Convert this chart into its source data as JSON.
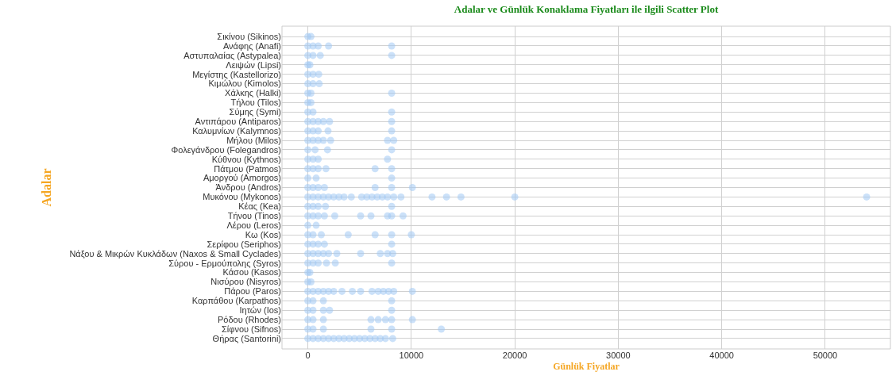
{
  "chart_data": {
    "type": "scatter",
    "orientation": "horizontal",
    "title": "Adalar ve Günlük Konaklama Fiyatları ile ilgili Scatter Plot",
    "xlabel": "Günlük Fiyatlar",
    "ylabel": "Adalar",
    "categories": [
      "Σικίνου (Sikinos)",
      "Ανάφης (Anafi)",
      "Αστυπαλαίας (Astypalea)",
      "Λειψών (Lipsi)",
      "Μεγίστης (Kastellorizo)",
      "Κιμώλου (Kimolos)",
      "Χάλκης (Halki)",
      "Τήλου (Tilos)",
      "Σύμης (Symi)",
      "Αντιπάρου (Antiparos)",
      "Καλυμνίων (Kalymnos)",
      "Μήλου (Milos)",
      "Φολεγάνδρου (Folegandros)",
      "Κύθνου (Kythnos)",
      "Πάτμου (Patmos)",
      "Αμοργού (Amorgos)",
      "Άνδρου (Andros)",
      "Μυκόνου (Mykonos)",
      "Κέας (Kea)",
      "Τήνου (Tinos)",
      "Λέρου (Leros)",
      "Κω (Kos)",
      "Σερίφου (Seriphos)",
      "Νάξου & Μικρών Κυκλάδων (Naxos & Small Cyclades)",
      "Σύρου - Ερμούπολης (Syros)",
      "Κάσου (Kasos)",
      "Νισύρου (Nisyros)",
      "Πάρου (Paros)",
      "Καρπάθου (Karpathos)",
      "Ιητών (Ios)",
      "Ρόδου (Rhodes)",
      "Σίφνου (Sifnos)",
      "Θήρας (Santorini)"
    ],
    "series": [
      {
        "color": "#a1c9f4",
        "values": [
          0,
          0,
          0,
          0,
          0,
          0,
          0,
          0,
          0,
          0,
          0,
          0,
          0,
          0,
          0,
          0,
          0,
          0,
          0,
          0,
          0,
          0,
          0,
          0,
          0,
          0,
          0,
          0,
          0,
          0,
          0,
          0,
          0
        ]
      },
      {
        "color": "#a1c9f4",
        "values": [
          300,
          500,
          500,
          200,
          500,
          500,
          300,
          300,
          500,
          500,
          500,
          500,
          700,
          500,
          500,
          800,
          500,
          500,
          500,
          500,
          800,
          500,
          500,
          500,
          500,
          200,
          300,
          500,
          500,
          500,
          500,
          500,
          500
        ]
      },
      {
        "color": "#a1c9f4",
        "values": [
          null,
          1000,
          1200,
          null,
          1050,
          1100,
          8100,
          null,
          8100,
          1000,
          1000,
          1000,
          1900,
          1000,
          1000,
          8100,
          1000,
          1000,
          1000,
          1000,
          null,
          1300,
          1000,
          1000,
          1000,
          null,
          null,
          1000,
          1500,
          1500,
          1500,
          1500,
          1000
        ]
      },
      {
        "color": "#a1c9f4",
        "values": [
          null,
          2000,
          8100,
          null,
          null,
          null,
          null,
          null,
          null,
          1500,
          1950,
          1500,
          8100,
          7700,
          1750,
          null,
          1600,
          1500,
          1700,
          1600,
          null,
          3900,
          1600,
          1500,
          1800,
          null,
          null,
          1500,
          8100,
          2100,
          6100,
          6100,
          1500
        ]
      },
      {
        "color": "#a1c9f4",
        "values": [
          null,
          8100,
          null,
          null,
          null,
          null,
          null,
          null,
          null,
          2100,
          8100,
          2200,
          null,
          null,
          6500,
          null,
          6500,
          2000,
          8100,
          2600,
          null,
          6500,
          8100,
          2000,
          2650,
          null,
          null,
          2000,
          null,
          8100,
          6800,
          8100,
          2000
        ]
      },
      {
        "color": "#a1c9f4",
        "values": [
          null,
          null,
          null,
          null,
          null,
          null,
          null,
          null,
          null,
          8100,
          null,
          7700,
          null,
          null,
          8100,
          null,
          8100,
          2500,
          null,
          5100,
          null,
          8100,
          null,
          2800,
          8100,
          null,
          null,
          2500,
          null,
          null,
          7500,
          12900,
          2500
        ]
      },
      {
        "color": "#a1c9f4",
        "values": [
          null,
          null,
          null,
          null,
          null,
          null,
          null,
          null,
          null,
          null,
          null,
          null,
          null,
          null,
          null,
          null,
          10100,
          3000,
          null,
          6100,
          null,
          10000,
          null,
          5100,
          null,
          null,
          null,
          3300,
          null,
          null,
          8100,
          null,
          3000
        ]
      },
      {
        "color": "#a1c9f4",
        "values": [
          null,
          null,
          null,
          null,
          null,
          null,
          null,
          null,
          null,
          null,
          null,
          8300,
          null,
          null,
          null,
          null,
          null,
          3500,
          null,
          7700,
          null,
          null,
          null,
          7000,
          null,
          null,
          null,
          4300,
          null,
          null,
          10100,
          null,
          3500
        ]
      },
      {
        "color": "#a1c9f4",
        "values": [
          null,
          null,
          null,
          null,
          null,
          null,
          null,
          null,
          null,
          null,
          null,
          null,
          null,
          null,
          null,
          null,
          null,
          4200,
          null,
          8100,
          null,
          null,
          null,
          7700,
          null,
          null,
          null,
          5100,
          null,
          null,
          null,
          null,
          4000
        ]
      },
      {
        "color": "#a1c9f4",
        "values": [
          null,
          null,
          null,
          null,
          null,
          null,
          null,
          null,
          null,
          null,
          null,
          null,
          null,
          null,
          null,
          null,
          null,
          5200,
          null,
          9200,
          null,
          null,
          null,
          8200,
          null,
          null,
          null,
          6200,
          null,
          null,
          null,
          null,
          4500
        ]
      },
      {
        "color": "#a1c9f4",
        "values": [
          null,
          null,
          null,
          null,
          null,
          null,
          null,
          null,
          null,
          null,
          null,
          null,
          null,
          null,
          null,
          null,
          null,
          5700,
          null,
          null,
          null,
          null,
          null,
          null,
          null,
          null,
          null,
          6800,
          null,
          null,
          null,
          null,
          5000
        ]
      },
      {
        "color": "#a1c9f4",
        "values": [
          null,
          null,
          null,
          null,
          null,
          null,
          null,
          null,
          null,
          null,
          null,
          null,
          null,
          null,
          null,
          null,
          null,
          6200,
          null,
          null,
          null,
          null,
          null,
          null,
          null,
          null,
          null,
          7300,
          null,
          null,
          null,
          null,
          5500
        ]
      },
      {
        "color": "#a1c9f4",
        "values": [
          null,
          null,
          null,
          null,
          null,
          null,
          null,
          null,
          null,
          null,
          null,
          null,
          null,
          null,
          null,
          null,
          null,
          6700,
          null,
          null,
          null,
          null,
          null,
          null,
          null,
          null,
          null,
          7800,
          null,
          null,
          null,
          null,
          6000
        ]
      },
      {
        "color": "#a1c9f4",
        "values": [
          null,
          null,
          null,
          null,
          null,
          null,
          null,
          null,
          null,
          null,
          null,
          null,
          null,
          null,
          null,
          null,
          null,
          7200,
          null,
          null,
          null,
          null,
          null,
          null,
          null,
          null,
          null,
          8300,
          null,
          null,
          null,
          null,
          6500
        ]
      },
      {
        "color": "#a1c9f4",
        "values": [
          null,
          null,
          null,
          null,
          null,
          null,
          null,
          null,
          null,
          null,
          null,
          null,
          null,
          null,
          null,
          null,
          null,
          7700,
          null,
          null,
          null,
          null,
          null,
          null,
          null,
          null,
          null,
          10100,
          null,
          null,
          null,
          null,
          7000
        ]
      },
      {
        "color": "#a1c9f4",
        "values": [
          null,
          null,
          null,
          null,
          null,
          null,
          null,
          null,
          null,
          null,
          null,
          null,
          null,
          null,
          null,
          null,
          null,
          8300,
          null,
          null,
          null,
          null,
          null,
          null,
          null,
          null,
          null,
          null,
          null,
          null,
          null,
          null,
          7500
        ]
      },
      {
        "color": "#a1c9f4",
        "values": [
          null,
          null,
          null,
          null,
          null,
          null,
          null,
          null,
          null,
          null,
          null,
          null,
          null,
          null,
          null,
          null,
          null,
          9000,
          null,
          null,
          null,
          null,
          null,
          null,
          null,
          null,
          null,
          null,
          null,
          null,
          null,
          null,
          8200
        ]
      },
      {
        "color": "#a1c9f4",
        "values": [
          null,
          null,
          null,
          null,
          null,
          null,
          null,
          null,
          null,
          null,
          null,
          null,
          null,
          null,
          null,
          null,
          null,
          12000,
          null,
          null,
          null,
          null,
          null,
          null,
          null,
          null,
          null,
          null,
          null,
          null,
          null,
          null,
          null
        ]
      },
      {
        "color": "#a1c9f4",
        "values": [
          null,
          null,
          null,
          null,
          null,
          null,
          null,
          null,
          null,
          null,
          null,
          null,
          null,
          null,
          null,
          null,
          null,
          13400,
          null,
          null,
          null,
          null,
          null,
          null,
          null,
          null,
          null,
          null,
          null,
          null,
          null,
          null,
          null
        ]
      },
      {
        "color": "#a1c9f4",
        "values": [
          null,
          null,
          null,
          null,
          null,
          null,
          null,
          null,
          null,
          null,
          null,
          null,
          null,
          null,
          null,
          null,
          null,
          14800,
          null,
          null,
          null,
          null,
          null,
          null,
          null,
          null,
          null,
          null,
          null,
          null,
          null,
          null,
          null
        ]
      },
      {
        "color": "#a1c9f4",
        "values": [
          null,
          null,
          null,
          null,
          null,
          null,
          null,
          null,
          null,
          null,
          null,
          null,
          null,
          null,
          null,
          null,
          null,
          20000,
          null,
          null,
          null,
          null,
          null,
          null,
          null,
          null,
          null,
          null,
          null,
          null,
          null,
          null,
          null
        ]
      },
      {
        "color": "#a1c9f4",
        "values": [
          null,
          null,
          null,
          null,
          null,
          null,
          null,
          null,
          null,
          null,
          null,
          null,
          null,
          null,
          null,
          null,
          null,
          54000,
          null,
          null,
          null,
          null,
          null,
          null,
          null,
          null,
          null,
          null,
          null,
          null,
          null,
          null,
          null
        ]
      }
    ],
    "xlim": [
      -2500,
      56300
    ],
    "xticks": [
      0,
      10000,
      20000,
      30000,
      40000,
      50000
    ],
    "grid": true,
    "marker": "circle"
  }
}
